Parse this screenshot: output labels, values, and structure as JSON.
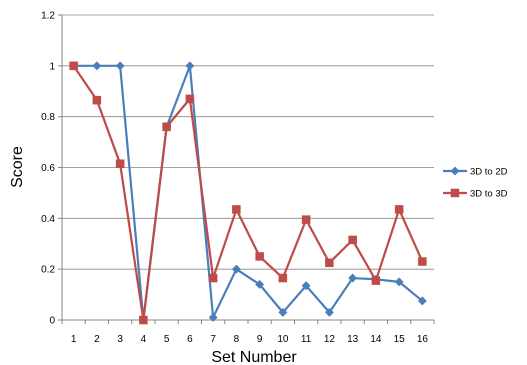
{
  "chart_data": {
    "type": "line",
    "title": "",
    "xlabel": "Set Number",
    "ylabel": "Score",
    "x": [
      1,
      2,
      3,
      4,
      5,
      6,
      7,
      8,
      9,
      10,
      11,
      12,
      13,
      14,
      15,
      16
    ],
    "ylim": [
      0,
      1.2
    ],
    "yticks": [
      "0",
      "0.2",
      "0.4",
      "0.6",
      "0.8",
      "1",
      "1.2"
    ],
    "grid": "horizontal",
    "legend_position": "right",
    "series": [
      {
        "name": "3D to 2D",
        "color": "#4a7ebb",
        "marker": "diamond",
        "values": [
          1,
          1,
          1,
          0,
          0.76,
          1,
          0.01,
          0.2,
          0.14,
          0.03,
          0.135,
          0.03,
          0.165,
          0.16,
          0.15,
          0.075
        ]
      },
      {
        "name": "3D to 3D",
        "color": "#be4b48",
        "marker": "square",
        "values": [
          1,
          0.865,
          0.615,
          0,
          0.76,
          0.87,
          0.165,
          0.435,
          0.25,
          0.165,
          0.395,
          0.225,
          0.315,
          0.155,
          0.435,
          0.23
        ]
      }
    ]
  }
}
